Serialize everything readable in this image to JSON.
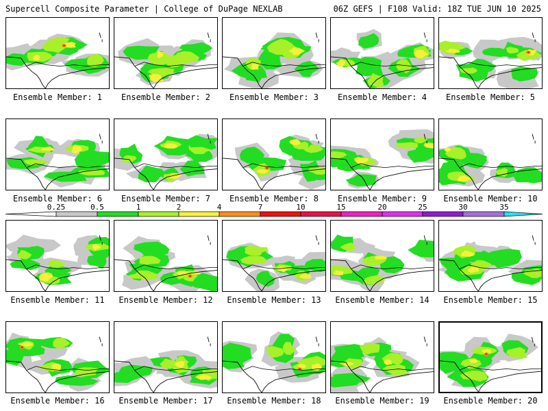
{
  "header": {
    "title_left": "Supercell Composite Parameter | College of DuPage NEXLAB",
    "title_right": "06Z GEFS | F108 Valid: 18Z TUE JUN 10 2025"
  },
  "colors": {
    "light_gray": "#c8c8c8",
    "green": "#22dd22",
    "lime": "#a8f028",
    "yellow": "#f5f03a",
    "orange": "#ff8c1a",
    "red": "#ee1111",
    "boundary": "#000000"
  },
  "colorbar": {
    "ticks": [
      "0.25",
      "0.5",
      "1",
      "2",
      "4",
      "7",
      "10",
      "15",
      "20",
      "25",
      "30",
      "35"
    ],
    "colors": [
      "#c8c8c8",
      "#22dd22",
      "#a8f028",
      "#f5f03a",
      "#ff8c1a",
      "#ee1111",
      "#e8114a",
      "#ee22bb",
      "#e02ef0",
      "#8c1ed2",
      "#a66fd8",
      "#1ee6f0"
    ]
  },
  "members": [
    {
      "label": "Ensemble Member: 1"
    },
    {
      "label": "Ensemble Member: 2"
    },
    {
      "label": "Ensemble Member: 3"
    },
    {
      "label": "Ensemble Member: 4"
    },
    {
      "label": "Ensemble Member: 5"
    },
    {
      "label": "Ensemble Member: 6"
    },
    {
      "label": "Ensemble Member: 7"
    },
    {
      "label": "Ensemble Member: 8"
    },
    {
      "label": "Ensemble Member: 9"
    },
    {
      "label": "Ensemble Member: 10"
    },
    {
      "label": "Ensemble Member: 11"
    },
    {
      "label": "Ensemble Member: 12"
    },
    {
      "label": "Ensemble Member: 13"
    },
    {
      "label": "Ensemble Member: 14"
    },
    {
      "label": "Ensemble Member: 15"
    },
    {
      "label": "Ensemble Member: 16"
    },
    {
      "label": "Ensemble Member: 17"
    },
    {
      "label": "Ensemble Member: 18"
    },
    {
      "label": "Ensemble Member: 19"
    },
    {
      "label": "Ensemble Member: 20"
    }
  ],
  "selected_member": "Ensemble Member: 20"
}
